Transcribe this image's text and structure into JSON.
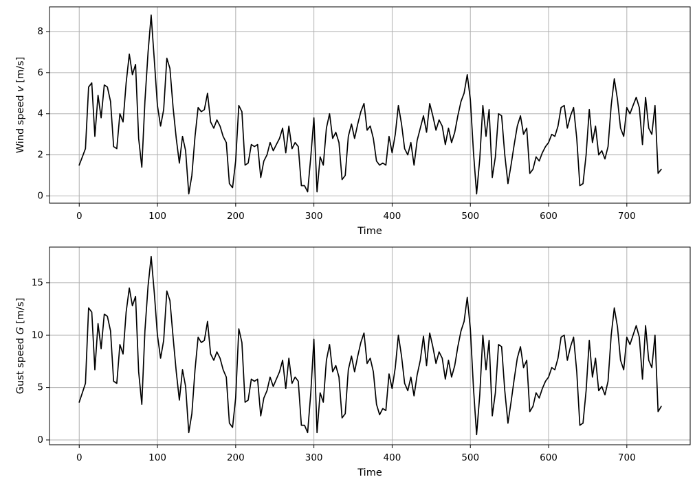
{
  "figure": {
    "background_color": "#ffffff",
    "line_color": "#000000",
    "grid_color": "#b0b0b0",
    "spine_color": "#000000",
    "text_color": "#000000"
  },
  "time": [
    0,
    4,
    8,
    12,
    16,
    20,
    24,
    28,
    32,
    36,
    40,
    44,
    48,
    52,
    56,
    60,
    64,
    68,
    72,
    76,
    80,
    84,
    88,
    92,
    96,
    100,
    104,
    108,
    112,
    116,
    120,
    124,
    128,
    132,
    136,
    140,
    144,
    148,
    152,
    156,
    160,
    164,
    168,
    172,
    176,
    180,
    184,
    188,
    192,
    196,
    200,
    204,
    208,
    212,
    216,
    220,
    224,
    228,
    232,
    236,
    240,
    244,
    248,
    252,
    256,
    260,
    264,
    268,
    272,
    276,
    280,
    284,
    288,
    292,
    296,
    300,
    304,
    308,
    312,
    316,
    320,
    324,
    328,
    332,
    336,
    340,
    344,
    348,
    352,
    356,
    360,
    364,
    368,
    372,
    376,
    380,
    384,
    388,
    392,
    396,
    400,
    404,
    408,
    412,
    416,
    420,
    424,
    428,
    432,
    436,
    440,
    444,
    448,
    452,
    456,
    460,
    464,
    468,
    472,
    476,
    480,
    484,
    488,
    492,
    496,
    500,
    504,
    508,
    512,
    516,
    520,
    524,
    528,
    532,
    536,
    540,
    544,
    548,
    552,
    556,
    560,
    564,
    568,
    572,
    576,
    580,
    584,
    588,
    592,
    596,
    600,
    604,
    608,
    612,
    616,
    620,
    624,
    628,
    632,
    636,
    640,
    644,
    648,
    652,
    656,
    660,
    664,
    668,
    672,
    676,
    680,
    684,
    688,
    692,
    696,
    700,
    704,
    708,
    712,
    716,
    720,
    724,
    728,
    732,
    736,
    740,
    744
  ],
  "chart_data": [
    {
      "type": "line",
      "series_name": "wind-speed",
      "title": "",
      "xlabel": "Time",
      "ylabel_prefix": "Wind speed ",
      "ylabel_var": "v",
      "ylabel_suffix": " [m/s]",
      "xlim": [
        -38,
        781
      ],
      "ylim": [
        -0.35,
        9.2
      ],
      "xticks": [
        0,
        100,
        200,
        300,
        400,
        500,
        600,
        700
      ],
      "yticks": [
        0,
        2,
        4,
        6,
        8
      ],
      "grid": true,
      "legend": null,
      "values": [
        1.5,
        1.9,
        2.3,
        5.3,
        5.5,
        2.9,
        4.9,
        3.8,
        5.4,
        5.3,
        4.6,
        2.4,
        2.3,
        4.0,
        3.6,
        5.5,
        6.9,
        5.9,
        6.4,
        2.8,
        1.4,
        4.6,
        7.0,
        8.8,
        6.6,
        4.4,
        3.4,
        4.2,
        6.7,
        6.2,
        4.3,
        2.8,
        1.6,
        2.9,
        2.2,
        0.1,
        1.0,
        2.9,
        4.3,
        4.1,
        4.2,
        5.0,
        3.6,
        3.3,
        3.7,
        3.4,
        2.9,
        2.6,
        0.6,
        0.4,
        1.7,
        4.4,
        4.1,
        1.5,
        1.6,
        2.5,
        2.4,
        2.5,
        0.9,
        1.7,
        2.0,
        2.6,
        2.2,
        2.5,
        2.8,
        3.3,
        2.1,
        3.4,
        2.3,
        2.6,
        2.4,
        0.5,
        0.5,
        0.2,
        1.9,
        3.8,
        0.2,
        1.9,
        1.5,
        3.3,
        4.0,
        2.8,
        3.1,
        2.6,
        0.8,
        1.0,
        2.9,
        3.5,
        2.8,
        3.5,
        4.1,
        4.5,
        3.2,
        3.4,
        2.8,
        1.7,
        1.5,
        1.6,
        1.5,
        2.9,
        2.1,
        3.0,
        4.4,
        3.5,
        2.3,
        2.0,
        2.6,
        1.5,
        2.7,
        3.3,
        3.9,
        3.1,
        4.5,
        3.9,
        3.2,
        3.7,
        3.4,
        2.5,
        3.3,
        2.6,
        3.1,
        3.9,
        4.6,
        5.0,
        5.9,
        4.7,
        2.1,
        0.1,
        1.8,
        4.4,
        2.9,
        4.2,
        0.9,
        1.9,
        4.0,
        3.9,
        2.0,
        0.6,
        1.5,
        2.5,
        3.4,
        3.9,
        3.0,
        3.3,
        1.1,
        1.3,
        1.9,
        1.7,
        2.1,
        2.4,
        2.6,
        3.0,
        2.9,
        3.4,
        4.3,
        4.4,
        3.3,
        3.9,
        4.3,
        2.8,
        0.5,
        0.6,
        2.0,
        4.2,
        2.6,
        3.4,
        2.0,
        2.2,
        1.8,
        2.4,
        4.4,
        5.7,
        4.7,
        3.3,
        2.9,
        4.3,
        4.0,
        4.4,
        4.8,
        4.3,
        2.5,
        4.8,
        3.3,
        3.0,
        4.4,
        1.1,
        1.3
      ]
    },
    {
      "type": "line",
      "series_name": "gust-speed",
      "title": "",
      "xlabel": "Time",
      "ylabel_prefix": "Gust speed ",
      "ylabel_var": "G",
      "ylabel_suffix": " [m/s]",
      "xlim": [
        -38,
        781
      ],
      "ylim": [
        -0.46,
        18.4
      ],
      "xticks": [
        0,
        100,
        200,
        300,
        400,
        500,
        600,
        700
      ],
      "yticks": [
        0,
        5,
        10,
        15
      ],
      "grid": true,
      "legend": null,
      "values": [
        3.6,
        4.5,
        5.4,
        12.6,
        12.2,
        6.7,
        11.1,
        8.7,
        12.0,
        11.8,
        10.4,
        5.6,
        5.4,
        9.1,
        8.2,
        12.2,
        14.5,
        12.8,
        13.7,
        6.5,
        3.4,
        10.4,
        14.7,
        17.5,
        14.0,
        10.0,
        7.8,
        9.5,
        14.2,
        13.3,
        9.8,
        6.5,
        3.8,
        6.7,
        5.1,
        0.7,
        2.5,
        6.7,
        9.8,
        9.3,
        9.5,
        11.3,
        8.2,
        7.6,
        8.4,
        7.8,
        6.7,
        6.0,
        1.6,
        1.2,
        4.0,
        10.6,
        9.3,
        3.6,
        3.8,
        5.8,
        5.6,
        5.8,
        2.3,
        4.0,
        4.7,
        6.0,
        5.1,
        5.8,
        6.5,
        7.6,
        4.9,
        7.8,
        5.4,
        6.0,
        5.6,
        1.4,
        1.4,
        0.7,
        4.5,
        9.6,
        0.7,
        4.5,
        3.6,
        7.6,
        9.1,
        6.5,
        7.1,
        6.0,
        2.1,
        2.5,
        6.7,
        8.0,
        6.5,
        8.0,
        9.3,
        10.2,
        7.3,
        7.8,
        6.5,
        3.4,
        2.4,
        3.0,
        2.8,
        6.3,
        4.9,
        6.9,
        10.0,
        8.0,
        5.4,
        4.7,
        6.0,
        4.2,
        6.2,
        7.6,
        9.9,
        7.1,
        10.2,
        8.9,
        7.3,
        8.4,
        7.8,
        5.8,
        7.6,
        6.0,
        7.1,
        8.9,
        10.4,
        11.3,
        13.6,
        10.6,
        4.9,
        0.5,
        4.3,
        10.0,
        6.7,
        9.5,
        2.3,
        4.5,
        9.1,
        8.9,
        4.7,
        1.6,
        3.6,
        5.8,
        7.8,
        8.9,
        6.9,
        7.6,
        2.7,
        3.2,
        4.5,
        4.0,
        4.9,
        5.6,
        6.0,
        6.9,
        6.7,
        7.8,
        9.8,
        10.0,
        7.6,
        8.9,
        9.8,
        6.5,
        1.4,
        1.6,
        4.7,
        9.5,
        6.0,
        7.8,
        4.7,
        5.1,
        4.3,
        5.6,
        10.0,
        12.6,
        10.8,
        7.6,
        6.7,
        9.8,
        9.1,
        10.0,
        10.9,
        9.8,
        5.8,
        10.9,
        7.6,
        6.9,
        10.0,
        2.7,
        3.2
      ]
    }
  ]
}
